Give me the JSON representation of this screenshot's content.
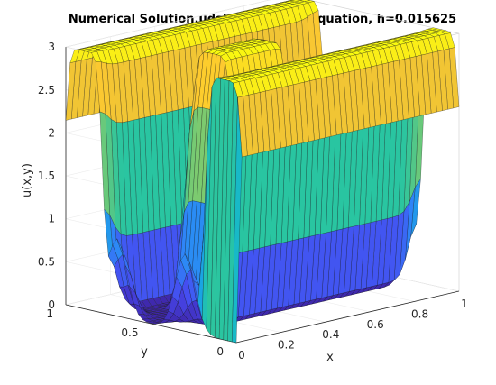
{
  "chart_data": {
    "type": "surface",
    "title": "Numerical Solution,udst, to Poisson Equation, h=0.015625",
    "xlabel": "x",
    "ylabel": "y",
    "zlabel": "u(x,y)",
    "xlim": [
      0,
      1
    ],
    "ylim": [
      0,
      1
    ],
    "zlim": [
      0,
      3
    ],
    "x_ticks": [
      "0",
      "0.2",
      "0.4",
      "0.6",
      "0.8",
      "1"
    ],
    "y_ticks": [
      "0",
      "0.5",
      "1"
    ],
    "z_ticks": [
      "0",
      "0.5",
      "1",
      "1.5",
      "2",
      "2.5",
      "3"
    ],
    "grid": true,
    "colormap": "parula",
    "h": 0.015625,
    "mesh_nodes_per_side": 65,
    "surface_description_values": {
      "ridge_count_along_y": 3,
      "ridge_peak": 3,
      "boundary_value_at_x0_and_x1": 1,
      "middle_ridge_x_range": [
        0.2,
        0.6
      ]
    }
  },
  "colors": {
    "colormap_stops": [
      "#3e26a8",
      "#4748f0",
      "#2e87f7",
      "#0fb4d9",
      "#2ac5a0",
      "#8ccb66",
      "#ddbf3b",
      "#fdc830",
      "#f9fb0e"
    ]
  }
}
